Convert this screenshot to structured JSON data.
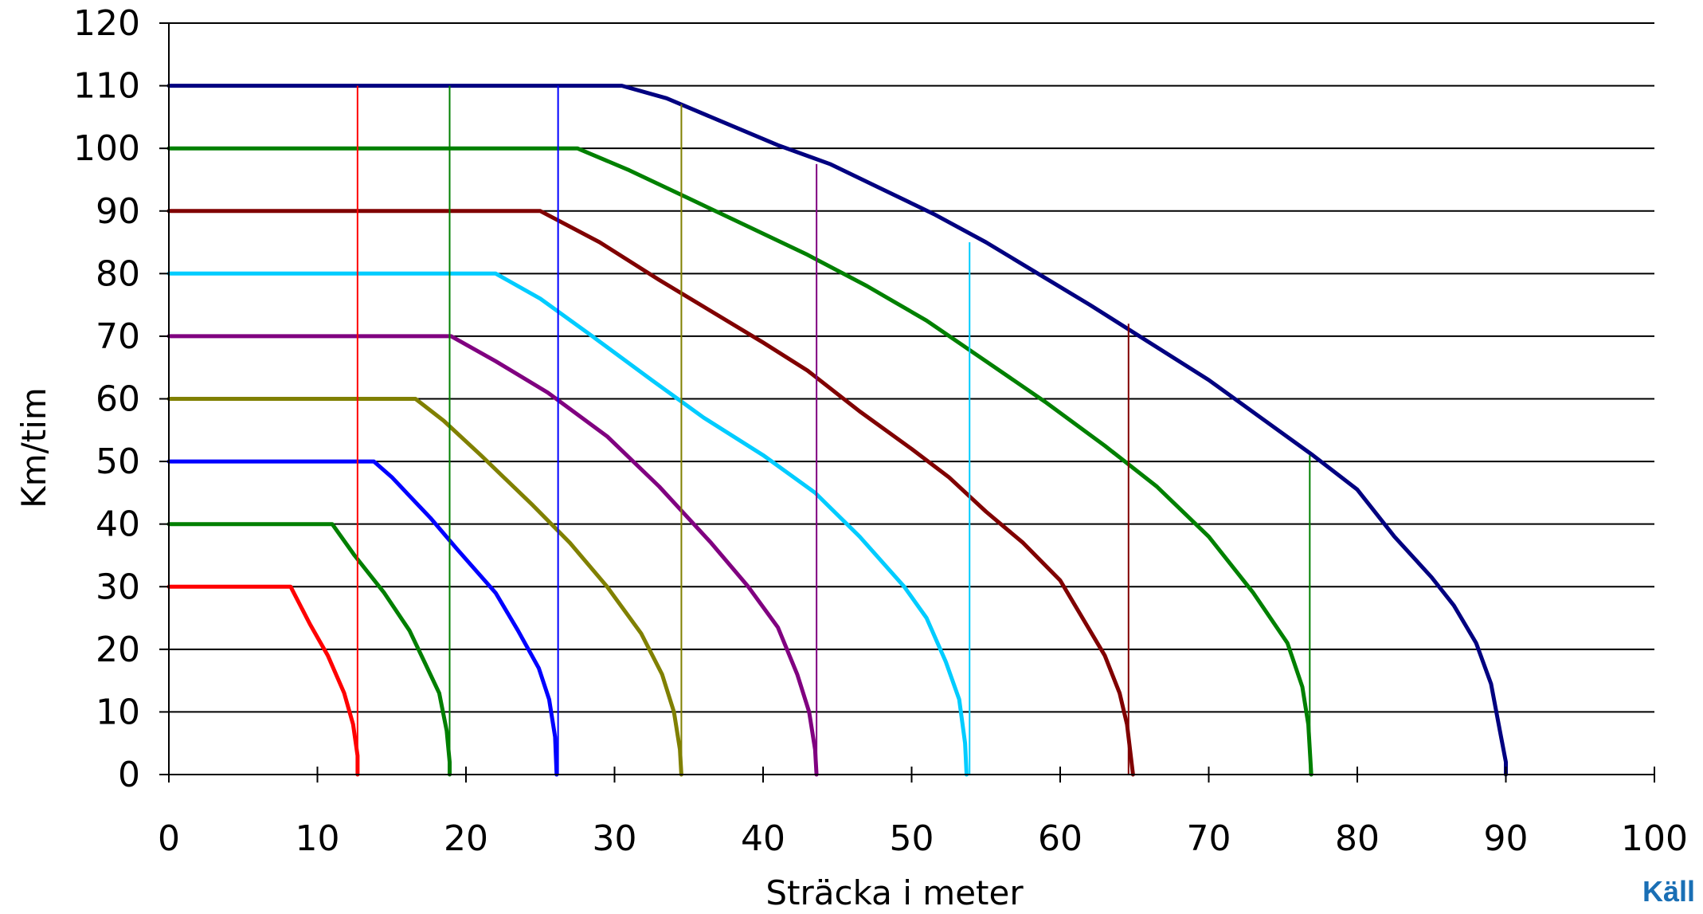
{
  "chart_data": {
    "type": "line",
    "title": "",
    "xlabel": "Sträcka i meter",
    "ylabel": "Km/tim",
    "xlim": [
      0,
      100
    ],
    "ylim": [
      0,
      120
    ],
    "x_ticks": [
      "0",
      "10",
      "20",
      "30",
      "40",
      "50",
      "60",
      "70",
      "80",
      "90",
      "100"
    ],
    "y_ticks": [
      "0",
      "10",
      "20",
      "30",
      "40",
      "50",
      "60",
      "70",
      "80",
      "90",
      "100",
      "110",
      "120"
    ],
    "grid": "horizontal",
    "legend": "none",
    "series": [
      {
        "color": "#ff0000",
        "points": [
          [
            0,
            30
          ],
          [
            8.2,
            30
          ],
          [
            9.5,
            24
          ],
          [
            10.7,
            19
          ],
          [
            11.8,
            13
          ],
          [
            12.4,
            8
          ],
          [
            12.7,
            3
          ],
          [
            12.7,
            0
          ]
        ]
      },
      {
        "color": "#007f00",
        "points": [
          [
            0,
            40
          ],
          [
            11,
            40
          ],
          [
            12.5,
            35
          ],
          [
            14.5,
            29
          ],
          [
            16.2,
            23
          ],
          [
            17.2,
            18
          ],
          [
            18.2,
            13
          ],
          [
            18.7,
            7
          ],
          [
            18.9,
            2
          ],
          [
            18.9,
            0
          ]
        ]
      },
      {
        "color": "#0000ff",
        "points": [
          [
            0,
            50
          ],
          [
            13.8,
            50
          ],
          [
            15,
            47.5
          ],
          [
            16.2,
            44.5
          ],
          [
            17.6,
            41
          ],
          [
            19.4,
            36
          ],
          [
            22,
            29
          ],
          [
            23.5,
            23
          ],
          [
            24.9,
            17
          ],
          [
            25.6,
            12
          ],
          [
            26,
            6
          ],
          [
            26.1,
            0
          ]
        ]
      },
      {
        "color": "#808000",
        "points": [
          [
            0,
            60
          ],
          [
            16.6,
            60
          ],
          [
            18.5,
            56.5
          ],
          [
            21,
            51
          ],
          [
            24.5,
            43
          ],
          [
            27,
            37
          ],
          [
            29.5,
            30
          ],
          [
            31.8,
            22.5
          ],
          [
            33.2,
            16
          ],
          [
            34,
            10
          ],
          [
            34.4,
            4
          ],
          [
            34.5,
            0
          ]
        ]
      },
      {
        "color": "#800080",
        "points": [
          [
            0,
            70
          ],
          [
            19,
            70
          ],
          [
            22,
            66
          ],
          [
            25.5,
            61
          ],
          [
            29.5,
            54
          ],
          [
            33,
            46
          ],
          [
            36.5,
            37
          ],
          [
            39,
            30
          ],
          [
            41,
            23.5
          ],
          [
            42.3,
            16
          ],
          [
            43.1,
            10
          ],
          [
            43.5,
            4
          ],
          [
            43.6,
            0
          ]
        ]
      },
      {
        "color": "#00ccff",
        "points": [
          [
            0,
            80
          ],
          [
            22,
            80
          ],
          [
            25,
            76
          ],
          [
            28.5,
            70
          ],
          [
            32.5,
            63
          ],
          [
            36,
            57
          ],
          [
            40,
            51
          ],
          [
            43.5,
            45
          ],
          [
            46.5,
            38
          ],
          [
            49.5,
            30
          ],
          [
            51,
            25
          ],
          [
            52.3,
            18
          ],
          [
            53.2,
            12
          ],
          [
            53.6,
            5
          ],
          [
            53.7,
            0
          ]
        ]
      },
      {
        "color": "#800000",
        "points": [
          [
            0,
            90
          ],
          [
            25,
            90
          ],
          [
            29,
            85
          ],
          [
            33,
            79
          ],
          [
            36.5,
            74
          ],
          [
            40,
            69
          ],
          [
            43,
            64.5
          ],
          [
            46.5,
            58
          ],
          [
            50,
            52
          ],
          [
            52.5,
            47.5
          ],
          [
            55,
            42
          ],
          [
            57.5,
            37
          ],
          [
            60,
            31
          ],
          [
            61.5,
            25
          ],
          [
            63,
            19
          ],
          [
            64,
            13
          ],
          [
            64.5,
            8
          ],
          [
            64.9,
            0
          ]
        ]
      },
      {
        "color": "#008000",
        "points": [
          [
            0,
            100
          ],
          [
            27.5,
            100
          ],
          [
            31,
            96.5
          ],
          [
            35,
            92
          ],
          [
            39,
            87.5
          ],
          [
            43,
            83
          ],
          [
            47,
            78
          ],
          [
            51,
            72.5
          ],
          [
            55,
            66
          ],
          [
            59,
            59.5
          ],
          [
            63,
            52.5
          ],
          [
            66.5,
            46
          ],
          [
            70,
            38
          ],
          [
            73,
            29
          ],
          [
            75.3,
            21
          ],
          [
            76.3,
            14
          ],
          [
            76.7,
            8
          ],
          [
            76.9,
            0
          ]
        ]
      },
      {
        "color": "#000080",
        "points": [
          [
            0,
            110
          ],
          [
            30.5,
            110
          ],
          [
            33.5,
            108
          ],
          [
            37,
            104.5
          ],
          [
            41,
            100.5
          ],
          [
            44.5,
            97.5
          ],
          [
            48,
            93.5
          ],
          [
            51.5,
            89.5
          ],
          [
            55,
            85
          ],
          [
            58.5,
            80
          ],
          [
            62,
            75
          ],
          [
            66,
            69
          ],
          [
            70,
            63
          ],
          [
            73.5,
            57
          ],
          [
            77,
            51
          ],
          [
            80,
            45.5
          ],
          [
            82.5,
            38
          ],
          [
            85,
            31.5
          ],
          [
            86.5,
            27
          ],
          [
            88,
            21
          ],
          [
            89,
            14.5
          ],
          [
            89.6,
            7
          ],
          [
            90,
            2
          ],
          [
            90,
            0
          ]
        ]
      }
    ],
    "markers": [
      {
        "x": 12.7,
        "y_top": 110,
        "color": "#ff0000"
      },
      {
        "x": 18.9,
        "y_top": 110,
        "color": "#007f00"
      },
      {
        "x": 26.2,
        "y_top": 110,
        "color": "#0000ff"
      },
      {
        "x": 34.5,
        "y_top": 107,
        "color": "#808000"
      },
      {
        "x": 43.6,
        "y_top": 97.5,
        "color": "#800080"
      },
      {
        "x": 53.9,
        "y_top": 85,
        "color": "#00ccff"
      },
      {
        "x": 64.6,
        "y_top": 72,
        "color": "#800000"
      },
      {
        "x": 76.8,
        "y_top": 51,
        "color": "#008000"
      }
    ]
  },
  "source_label": "Käll"
}
